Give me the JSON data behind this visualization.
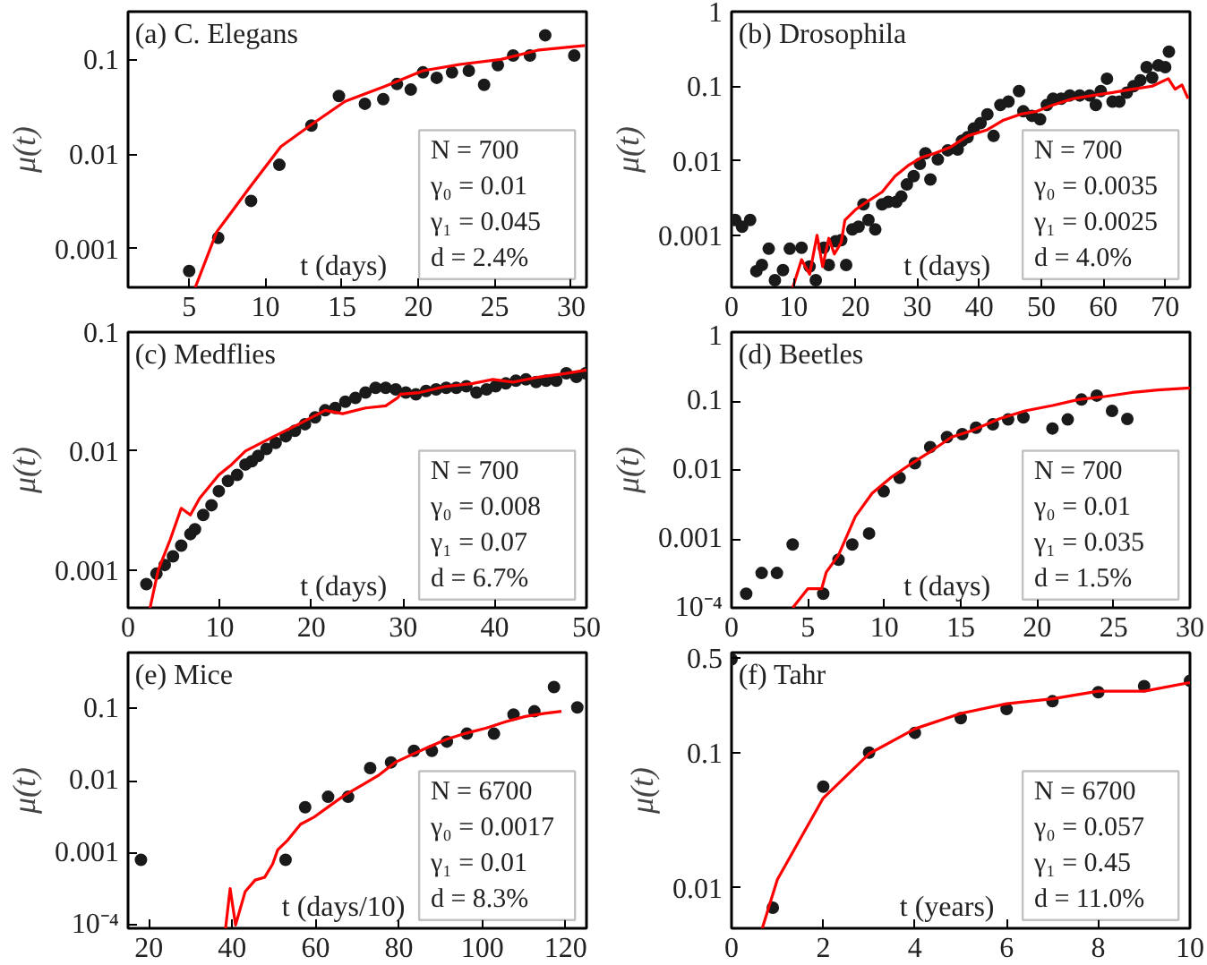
{
  "chart_data": [
    {
      "type": "scatter",
      "title": "(a)  C. Elegans",
      "xlabel": "t (days)",
      "ylabel": "μ(t)",
      "log": "y",
      "grid": false,
      "xlim": [
        1,
        31
      ],
      "ylim": [
        0.00039,
        0.32
      ],
      "xticks": [
        5,
        10,
        15,
        20,
        25,
        30
      ],
      "yticks": [
        0.001,
        0.01,
        0.1
      ],
      "annotations": [
        "N = 700",
        "γ₀ = 0.01",
        "γ₁ = 0.045",
        "d = 2.4%"
      ],
      "series": [
        {
          "marker": "circle",
          "color": "#1a1a1a",
          "x": [
            5,
            6.9,
            9.05,
            10.9,
            13.0,
            14.8,
            16.5,
            17.7,
            18.6,
            19.5,
            20.3,
            21.2,
            22.2,
            23.3,
            24.3,
            25.2,
            26.2,
            27.3,
            28.3,
            30.2
          ],
          "values": [
            0.00058,
            0.0013,
            0.0032,
            0.0077,
            0.02,
            0.041,
            0.034,
            0.038,
            0.055,
            0.048,
            0.073,
            0.064,
            0.073,
            0.076,
            0.054,
            0.087,
            0.11,
            0.11,
            0.18,
            0.11
          ]
        },
        {
          "type": "line",
          "color": "#ff0000",
          "x": [
            5.4,
            6.8,
            8.9,
            11,
            13.1,
            15.2,
            17.8,
            20.3,
            22.8,
            25.4,
            27.9,
            30.9
          ],
          "values": [
            0.00039,
            0.0015,
            0.0043,
            0.012,
            0.021,
            0.036,
            0.052,
            0.076,
            0.089,
            0.1,
            0.126,
            0.14
          ]
        }
      ]
    },
    {
      "type": "scatter",
      "title": "(b)  Drosophila",
      "xlabel": "t (days)",
      "ylabel": "μ(t)",
      "log": "y",
      "grid": false,
      "xlim": [
        0,
        74
      ],
      "ylim": [
        0.0002,
        1
      ],
      "xticks": [
        0,
        10,
        20,
        30,
        40,
        50,
        60,
        70
      ],
      "yticks": [
        0.001,
        0.01,
        0.1,
        1
      ],
      "annotations": [
        "N = 700",
        "γ₀ = 0.0035",
        "γ₁ = 0.0025",
        "d = 4.0%"
      ],
      "series": [
        {
          "marker": "circle",
          "color": "#1a1a1a",
          "x": [
            0.6,
            1.7,
            3,
            4,
            4.9,
            6,
            7,
            8.3,
            9.4,
            11.3,
            12.6,
            13.6,
            14.9,
            15.7,
            16.8,
            17.7,
            18.5,
            19.5,
            20.5,
            21.3,
            22.1,
            23.2,
            24.3,
            25.3,
            26.6,
            27.4,
            28.3,
            29.4,
            30.4,
            31.3,
            32.1,
            33.3,
            34.9,
            36.5,
            37.2,
            38.1,
            39.1,
            40.2,
            41.3,
            42.3,
            43.4,
            44.7,
            46.4,
            47.1,
            48.5,
            49.8,
            50.9,
            51.9,
            53.2,
            54.6,
            56.2,
            57.8,
            58.8,
            59.6,
            60.6,
            61.5,
            62.6,
            63.8,
            64.9,
            66,
            67,
            67.9,
            68.9,
            70,
            70.6
          ],
          "values": [
            0.0016,
            0.0013,
            0.0016,
            0.00033,
            0.0004,
            0.00066,
            0.00025,
            0.00034,
            0.00066,
            0.00068,
            0.00038,
            0.00025,
            0.00068,
            0.0004,
            0.00083,
            0.00086,
            0.0004,
            0.0012,
            0.0013,
            0.0026,
            0.0016,
            0.0012,
            0.0026,
            0.0028,
            0.0028,
            0.0033,
            0.0048,
            0.0062,
            0.0091,
            0.0126,
            0.0056,
            0.0104,
            0.0138,
            0.0141,
            0.0185,
            0.0207,
            0.027,
            0.032,
            0.042,
            0.0215,
            0.056,
            0.062,
            0.086,
            0.046,
            0.04,
            0.036,
            0.056,
            0.068,
            0.068,
            0.075,
            0.075,
            0.075,
            0.056,
            0.086,
            0.126,
            0.062,
            0.062,
            0.082,
            0.1,
            0.12,
            0.18,
            0.13,
            0.19,
            0.18,
            0.29
          ]
        },
        {
          "type": "line",
          "color": "#ff0000",
          "x": [
            9.9,
            11.3,
            12.6,
            13.8,
            14.7,
            15.7,
            16.6,
            17.7,
            18.3,
            20,
            22.1,
            24.3,
            26.4,
            28.5,
            30.6,
            32.8,
            35.4,
            38.1,
            41.3,
            43.9,
            46.6,
            49.3,
            51.9,
            55.1,
            58.3,
            61.5,
            64.7,
            67.9,
            70.5,
            71.6,
            72.7,
            73.7
          ],
          "values": [
            0.0002,
            0.00047,
            0.0003,
            0.001,
            0.00038,
            0.00091,
            0.00056,
            0.0008,
            0.0016,
            0.0022,
            0.0029,
            0.0038,
            0.0062,
            0.0086,
            0.011,
            0.0126,
            0.0153,
            0.0215,
            0.026,
            0.035,
            0.042,
            0.046,
            0.056,
            0.068,
            0.075,
            0.082,
            0.091,
            0.1,
            0.126,
            0.091,
            0.104,
            0.068
          ]
        }
      ]
    },
    {
      "type": "scatter",
      "title": "(c)  Medflies",
      "xlabel": "t (days)",
      "ylabel": "μ(t)",
      "log": "y",
      "grid": false,
      "xlim": [
        0,
        50
      ],
      "ylim": [
        0.00048,
        0.1
      ],
      "xticks": [
        0,
        10,
        20,
        30,
        40,
        50
      ],
      "yticks": [
        0.001,
        0.01,
        0.1
      ],
      "annotations": [
        "N = 700",
        "γ₀ = 0.008",
        "γ₁ = 0.07",
        "d = 6.7%"
      ],
      "series": [
        {
          "marker": "circle",
          "color": "#1a1a1a",
          "x": [
            2,
            3.1,
            4,
            4.9,
            5.8,
            6.8,
            7.3,
            8.2,
            9.1,
            9.9,
            10.9,
            11.9,
            12.8,
            13.5,
            14.2,
            15.1,
            16.1,
            17.2,
            18.2,
            19.3,
            20.4,
            21.5,
            22.6,
            23.7,
            24.8,
            25.9,
            27,
            28.1,
            29.2,
            30.3,
            31.4,
            32.5,
            33.6,
            34.7,
            35.8,
            36.9,
            38,
            39.1,
            40.1,
            41.2,
            42.3,
            43.4,
            44.5,
            45.6,
            46.7,
            47.8,
            48.9,
            49.9
          ],
          "values": [
            0.00076,
            0.00093,
            0.0011,
            0.0013,
            0.0016,
            0.002,
            0.0022,
            0.0029,
            0.0035,
            0.0046,
            0.0056,
            0.0063,
            0.0077,
            0.0082,
            0.0091,
            0.0104,
            0.0117,
            0.0133,
            0.0148,
            0.0168,
            0.0192,
            0.022,
            0.023,
            0.026,
            0.028,
            0.031,
            0.034,
            0.034,
            0.033,
            0.031,
            0.03,
            0.032,
            0.033,
            0.034,
            0.034,
            0.035,
            0.031,
            0.033,
            0.035,
            0.037,
            0.039,
            0.04,
            0.038,
            0.039,
            0.039,
            0.045,
            0.042,
            0.045
          ]
        },
        {
          "type": "line",
          "color": "#ff0000",
          "x": [
            2.4,
            3.3,
            4.6,
            5.8,
            6.8,
            7.8,
            9.9,
            11.3,
            12.8,
            15.7,
            18.6,
            21.5,
            23.4,
            25.9,
            28.1,
            29.4,
            29.7,
            31.8,
            34.7,
            37.6,
            39.8,
            42,
            44.9,
            47.8,
            50
          ],
          "values": [
            0.00048,
            0.001,
            0.0018,
            0.0033,
            0.0029,
            0.004,
            0.0063,
            0.0077,
            0.01,
            0.013,
            0.0168,
            0.022,
            0.0206,
            0.023,
            0.024,
            0.028,
            0.03,
            0.031,
            0.035,
            0.037,
            0.04,
            0.038,
            0.042,
            0.045,
            0.048
          ]
        }
      ]
    },
    {
      "type": "scatter",
      "title": "(d)  Beetles",
      "xlabel": "t (days)",
      "ylabel": "μ(t)",
      "log": "y",
      "grid": false,
      "xlim": [
        0,
        30
      ],
      "ylim": [
        0.0001,
        1
      ],
      "xticks": [
        0,
        5,
        10,
        15,
        20,
        25,
        30
      ],
      "yticks": [
        {
          "value": 0.0001,
          "label": "10⁻⁴"
        },
        0.001,
        0.01,
        0.1,
        1
      ],
      "annotations": [
        "N = 700",
        "γ₀ = 0.01",
        "γ₁ = 0.035",
        "d = 1.5%"
      ],
      "series": [
        {
          "marker": "circle",
          "color": "#1a1a1a",
          "x": [
            0.96,
            1.97,
            2.97,
            4,
            6,
            7,
            7.9,
            9,
            9.96,
            11,
            12,
            13,
            14.1,
            15.1,
            16,
            17.1,
            18.1,
            19.1,
            21,
            22,
            22.9,
            23.9,
            24.9,
            25.9
          ],
          "values": [
            0.00016,
            0.00032,
            0.00032,
            0.00083,
            0.00016,
            0.0005,
            0.00083,
            0.0012,
            0.0049,
            0.0077,
            0.0125,
            0.0215,
            0.03,
            0.033,
            0.041,
            0.046,
            0.054,
            0.058,
            0.04,
            0.054,
            0.105,
            0.12,
            0.072,
            0.055
          ]
        },
        {
          "type": "line",
          "color": "#ff0000",
          "x": [
            4,
            5,
            5.9,
            6.2,
            7,
            8.1,
            9.2,
            10.5,
            11.8,
            13.1,
            14.4,
            15.7,
            17.5,
            19.2,
            21,
            22.7,
            24.5,
            26.2,
            27.9,
            30
          ],
          "values": [
            0.0001,
            0.00019,
            0.00019,
            0.00033,
            0.00058,
            0.0021,
            0.0046,
            0.008,
            0.0125,
            0.019,
            0.03,
            0.037,
            0.055,
            0.072,
            0.086,
            0.105,
            0.117,
            0.133,
            0.145,
            0.155
          ]
        }
      ]
    },
    {
      "type": "scatter",
      "title": "(e)  Mice",
      "xlabel": "t (days/10)",
      "ylabel": "μ(t)",
      "log": "y",
      "grid": false,
      "xlim": [
        15,
        125
      ],
      "ylim": [
        9e-05,
        0.6
      ],
      "xticks": [
        20,
        40,
        60,
        80,
        100,
        120
      ],
      "yticks": [
        {
          "value": 0.0001,
          "label": "10⁻⁴"
        },
        0.001,
        0.01,
        0.1
      ],
      "annotations": [
        "N = 6700",
        "γ₀ = 0.0017",
        "γ₁ = 0.01",
        "d = 8.3%"
      ],
      "series": [
        {
          "marker": "circle",
          "color": "#1a1a1a",
          "x": [
            18.1,
            52.8,
            57.5,
            63,
            67.8,
            73.1,
            78.1,
            83.6,
            87.9,
            91.5,
            96.3,
            102.8,
            107.5,
            112.5,
            117.2,
            122.8
          ],
          "values": [
            0.0008,
            0.0008,
            0.0043,
            0.006,
            0.006,
            0.015,
            0.018,
            0.026,
            0.026,
            0.035,
            0.045,
            0.045,
            0.083,
            0.092,
            0.2,
            0.104
          ]
        },
        {
          "type": "line",
          "color": "#ff0000",
          "x": [
            38.4,
            39.5,
            40.8,
            43.1,
            45.5,
            47.8,
            49.7,
            50.9,
            53.3,
            56.4,
            59.5,
            63.4,
            67.3,
            71.3,
            75.2,
            79.1,
            83,
            86.9,
            91.6,
            96.3,
            101,
            105.6,
            110.3,
            115,
            119
          ],
          "values": [
            9e-05,
            0.00032,
            0.0001,
            0.00029,
            0.00042,
            0.00046,
            0.0007,
            0.0011,
            0.0015,
            0.0025,
            0.0031,
            0.0045,
            0.0065,
            0.0088,
            0.012,
            0.018,
            0.023,
            0.029,
            0.038,
            0.046,
            0.054,
            0.066,
            0.078,
            0.086,
            0.092
          ]
        }
      ]
    },
    {
      "type": "scatter",
      "title": "(f)  Tahr",
      "xlabel": "t (years)",
      "ylabel": "μ(t)",
      "log": "y",
      "grid": false,
      "xlim": [
        0,
        10
      ],
      "ylim": [
        0.005,
        0.55
      ],
      "xticks": [
        0,
        2,
        4,
        6,
        8,
        10
      ],
      "yticks": [
        0.01,
        0.1,
        0.5
      ],
      "annotations": [
        "N = 6700",
        "γ₀ = 0.057",
        "γ₁ = 0.45",
        "d = 11.0%"
      ],
      "series": [
        {
          "marker": "circle",
          "color": "#1a1a1a",
          "x": [
            0,
            0.9,
            2,
            3,
            4,
            5,
            6,
            7,
            8,
            9,
            10
          ],
          "values": [
            0.49,
            0.0071,
            0.056,
            0.1,
            0.14,
            0.18,
            0.21,
            0.24,
            0.28,
            0.31,
            0.34
          ]
        },
        {
          "type": "line",
          "color": "#ff0000",
          "x": [
            0.67,
            1,
            2,
            3,
            4,
            5,
            6,
            7,
            8,
            9,
            10
          ],
          "values": [
            0.005,
            0.0115,
            0.046,
            0.098,
            0.15,
            0.195,
            0.23,
            0.25,
            0.285,
            0.285,
            0.33
          ]
        }
      ]
    }
  ]
}
